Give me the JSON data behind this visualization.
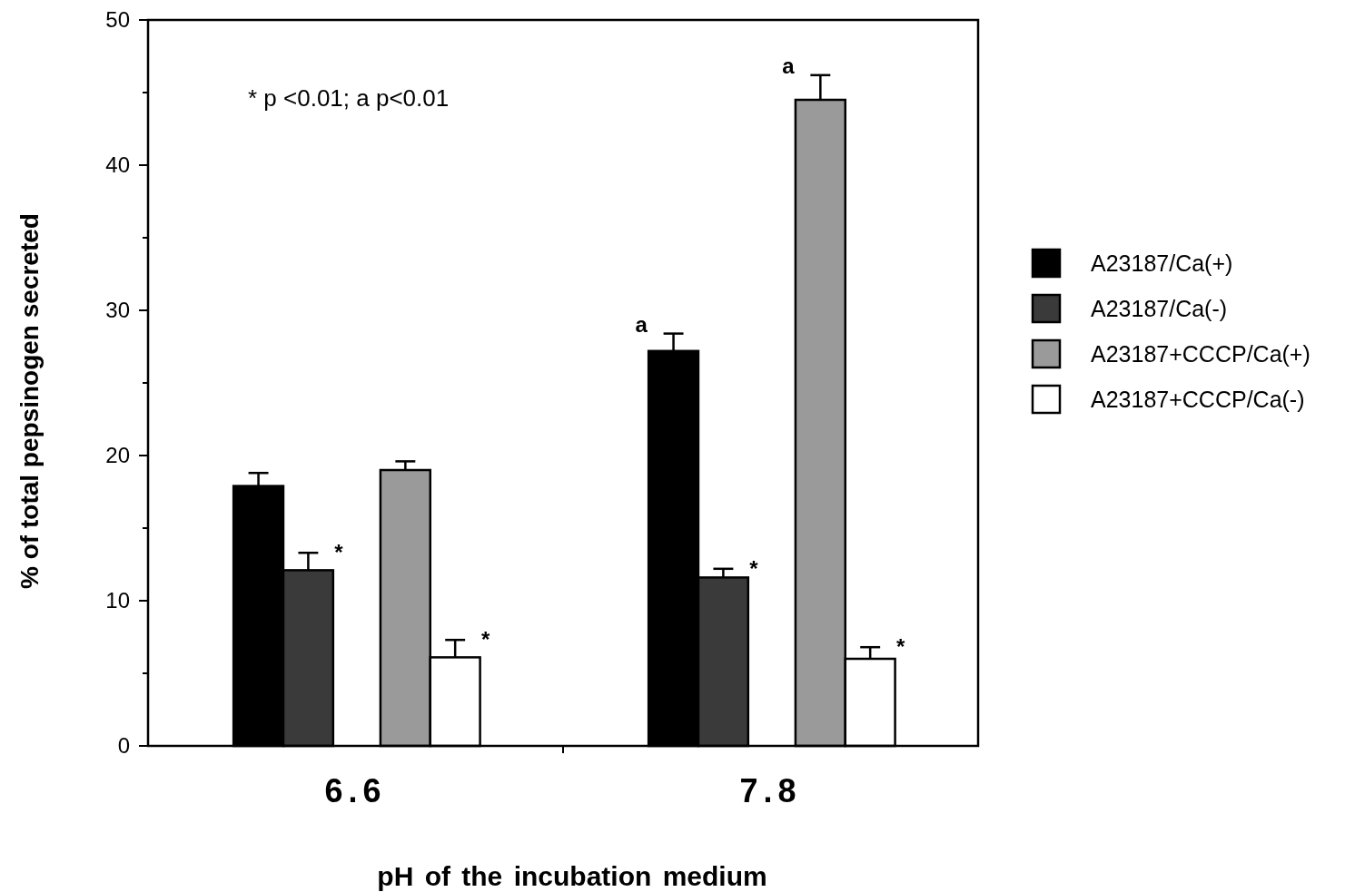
{
  "chart_data": {
    "type": "bar",
    "categories": [
      "6.6",
      "7.8"
    ],
    "xlabel": "pH  of  the  incubation  medium",
    "ylabel": "%  of  total  pepsinogen  secreted",
    "ylim": [
      0,
      50
    ],
    "yticks": [
      0,
      {
        "value": 5,
        "label": null
      },
      10,
      {
        "value": 15,
        "label": null
      },
      20,
      {
        "value": 25,
        "label": null
      },
      30,
      {
        "value": 35,
        "label": null
      },
      40,
      {
        "value": 45,
        "label": null
      },
      50
    ],
    "legend": "right",
    "grid": false,
    "series": [
      {
        "name": "A23187/Ca(+)",
        "color": "#000000",
        "values": [
          17.9,
          27.2
        ],
        "errors": [
          [
            17.9,
            18.8
          ],
          [
            27.2,
            28.4
          ]
        ]
      },
      {
        "name": "A23187/Ca(-)",
        "color": "#3a3a3a",
        "values": [
          12.1,
          11.6
        ],
        "errors": [
          [
            12.1,
            13.3
          ],
          [
            11.6,
            12.2
          ]
        ]
      },
      {
        "name": "A23187+CCCP/Ca(+)",
        "color": "#9a9a9a",
        "values": [
          19.0,
          44.5
        ],
        "errors": [
          [
            19.0,
            19.6
          ],
          [
            44.5,
            46.2
          ]
        ]
      },
      {
        "name": "A23187+CCCP/Ca(-)",
        "color": "#ffffff",
        "values": [
          6.1,
          6.0
        ],
        "errors": [
          [
            6.1,
            7.3
          ],
          [
            6.0,
            6.8
          ]
        ]
      }
    ],
    "annotations": [
      "* p <0.01;  a p<0.01",
      "*",
      "*",
      "a",
      "*",
      "a",
      "*"
    ]
  }
}
